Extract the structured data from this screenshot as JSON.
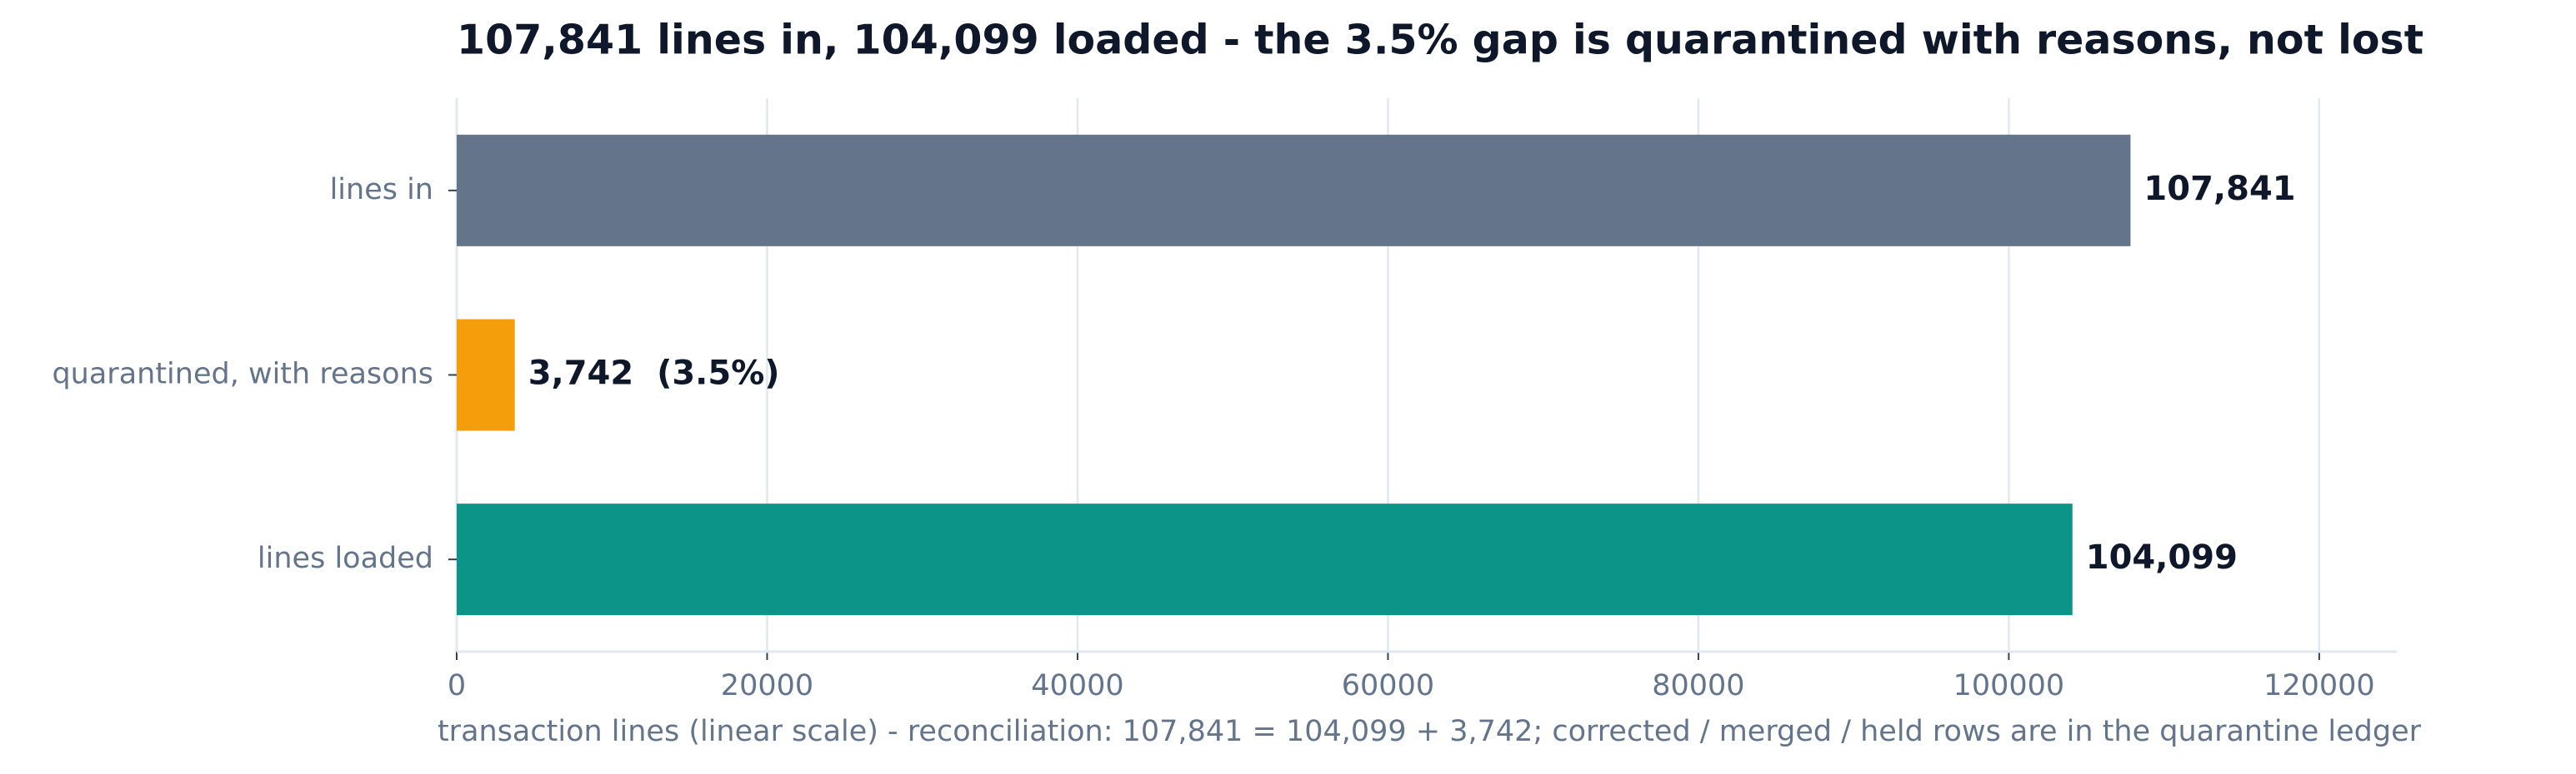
{
  "chart_data": {
    "type": "hbar",
    "title": "107,841 lines in, 104,099 loaded - the 3.5% gap is quarantined with reasons, not lost",
    "x_label": "transaction lines (linear scale) - reconciliation: 107,841 = 104,099 + 3,742; corrected / merged / held rows are in the quarantine ledger",
    "categories": [
      "lines in",
      "quarantined, with reasons",
      "lines loaded"
    ],
    "values": [
      107841,
      3742,
      104099
    ],
    "value_labels": [
      "107,841",
      "3,742  (3.5%)",
      "104,099"
    ],
    "colors": [
      "#64748b",
      "#f59e0b",
      "#0d9488"
    ],
    "xlim": [
      0,
      125000
    ],
    "xticks": [
      0,
      20000,
      40000,
      60000,
      80000,
      100000,
      120000
    ],
    "grid": true
  }
}
